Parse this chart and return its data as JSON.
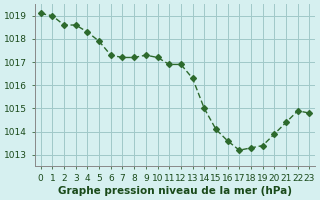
{
  "x": [
    0,
    1,
    2,
    3,
    4,
    5,
    6,
    7,
    8,
    9,
    10,
    11,
    12,
    13,
    14,
    15,
    16,
    17,
    18,
    19,
    20,
    21,
    22,
    23
  ],
  "y": [
    1019.1,
    1019.0,
    1018.6,
    1018.6,
    1018.3,
    1017.9,
    1017.3,
    1017.2,
    1017.2,
    1017.3,
    1017.2,
    1016.9,
    1016.9,
    1016.3,
    1015.0,
    1014.1,
    1013.6,
    1013.2,
    1013.3,
    1013.4,
    1013.9,
    1014.4,
    1014.9,
    1014.8
  ],
  "line_color": "#2d6a2d",
  "marker": "D",
  "marker_size": 3,
  "bg_color": "#d6f0f0",
  "grid_color": "#a0c8c8",
  "xlabel": "Graphe pression niveau de la mer (hPa)",
  "xlabel_color": "#1a4a1a",
  "tick_color": "#1a4a1a",
  "ylim": [
    1012.5,
    1019.5
  ],
  "yticks": [
    1013,
    1014,
    1015,
    1016,
    1017,
    1018,
    1019
  ],
  "xlim": [
    -0.5,
    23.5
  ],
  "xticks": [
    0,
    1,
    2,
    3,
    4,
    5,
    6,
    7,
    8,
    9,
    10,
    11,
    12,
    13,
    14,
    15,
    16,
    17,
    18,
    19,
    20,
    21,
    22,
    23
  ],
  "axis_label_fontsize": 7,
  "tick_fontsize": 6.5,
  "xlabel_fontsize": 7.5
}
